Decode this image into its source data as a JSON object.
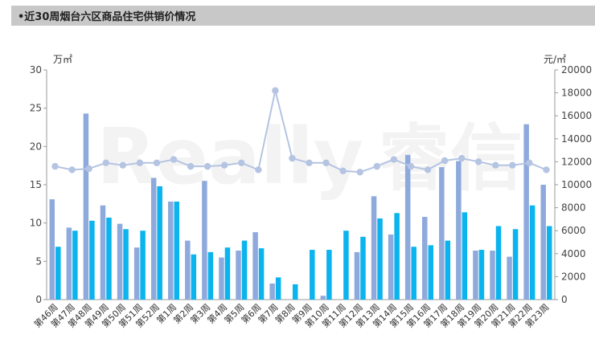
{
  "banner": {
    "title": "•近30周烟台六区商品住宅供销价情况"
  },
  "watermark": {
    "text": "Really",
    "text2": "睿信"
  },
  "chart_data": {
    "type": "bar",
    "categories": [
      "第46周",
      "第47周",
      "第48周",
      "第49周",
      "第50周",
      "第51周",
      "第52周",
      "第1周",
      "第2周",
      "第3周",
      "第4周",
      "第5周",
      "第6周",
      "第7周",
      "第8周",
      "第9周",
      "第10周",
      "第11周",
      "第12周",
      "第13周",
      "第14周",
      "第15周",
      "第16周",
      "第17周",
      "第18周",
      "第19周",
      "第20周",
      "第21周",
      "第22周",
      "第23周"
    ],
    "left_axis": {
      "unit": "万㎡",
      "ylim": [
        0,
        30
      ],
      "ticks": [
        "0",
        "5",
        "10",
        "15",
        "20",
        "25",
        "30"
      ]
    },
    "right_axis": {
      "unit": "元/㎡",
      "ylim": [
        0,
        20000
      ],
      "ticks": [
        "0",
        "2000",
        "4000",
        "6000",
        "8000",
        "10000",
        "12000",
        "14000",
        "16000",
        "18000",
        "20000"
      ]
    },
    "series": [
      {
        "type": "bar",
        "axis": "left",
        "color": "#8eaadc",
        "values": [
          13.1,
          9.4,
          24.3,
          12.3,
          9.9,
          6.8,
          15.9,
          12.8,
          7.7,
          15.5,
          5.5,
          6.4,
          8.8,
          2.1,
          0,
          0,
          0.5,
          0,
          6.2,
          13.5,
          8.5,
          18.9,
          10.8,
          17.3,
          18.1,
          6.4,
          6.4,
          5.6,
          22.9,
          15.0
        ]
      },
      {
        "type": "bar",
        "axis": "left",
        "color": "#0bb4ee",
        "values": [
          6.9,
          9.0,
          10.3,
          10.7,
          9.2,
          9.0,
          14.8,
          12.8,
          5.9,
          6.2,
          6.8,
          7.7,
          6.7,
          2.9,
          2.0,
          6.5,
          6.5,
          9.0,
          8.2,
          10.6,
          11.3,
          6.9,
          7.1,
          7.7,
          11.4,
          6.5,
          9.6,
          9.2,
          12.3,
          9.6
        ]
      },
      {
        "type": "line",
        "axis": "right",
        "color": "#b4c4e2",
        "values": [
          11600,
          11300,
          11400,
          11900,
          11700,
          11900,
          11900,
          12200,
          11600,
          11600,
          11700,
          11900,
          11300,
          18200,
          12300,
          11900,
          11900,
          11200,
          11100,
          11600,
          12200,
          11600,
          11300,
          12100,
          12300,
          12000,
          11700,
          11700,
          11900,
          11300
        ]
      }
    ]
  }
}
